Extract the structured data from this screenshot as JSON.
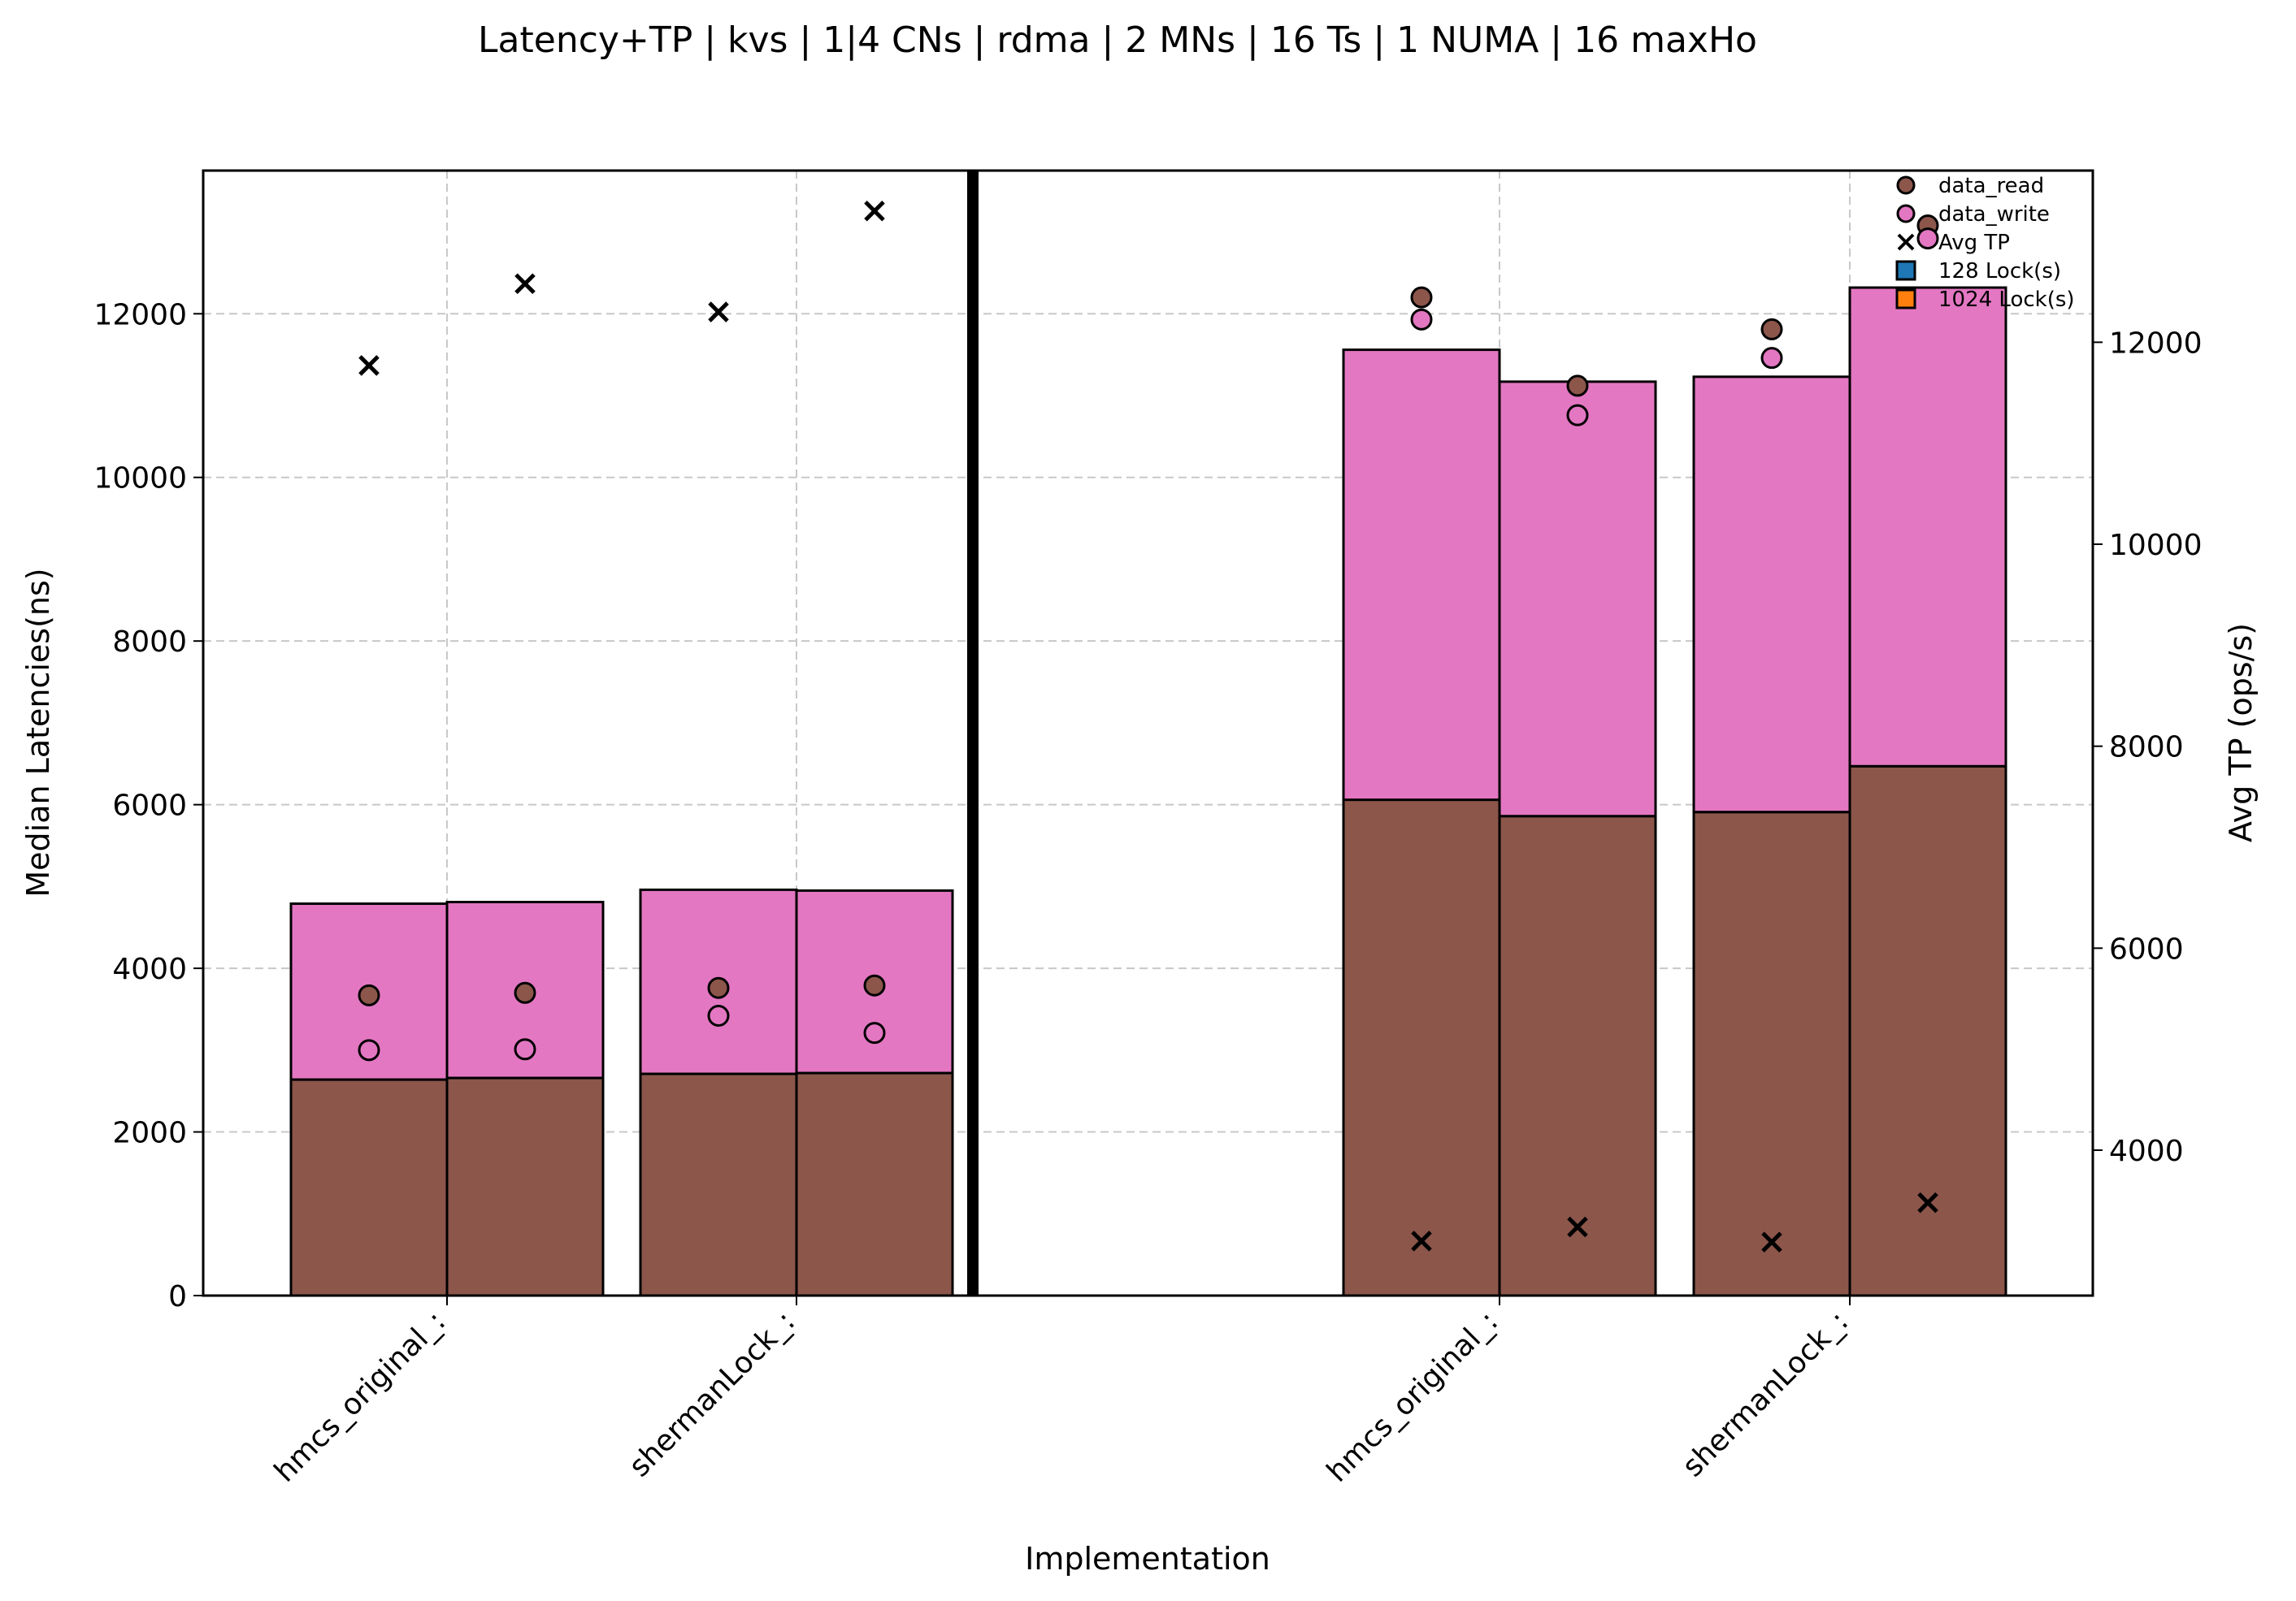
{
  "chart_data": {
    "type": "bar",
    "title": "Latency+TP | kvs | 1|4 CNs | rdma | 2 MNs | 16 Ts | 1 NUMA | 16 maxHo",
    "xlabel": "Implementation",
    "ylabel": "Median Latencies(ns)",
    "y2label": "Avg TP (ops/s)",
    "ylim": [
      0,
      13750
    ],
    "y2lim": [
      2560,
      13700
    ],
    "yticks": [
      0,
      2000,
      4000,
      6000,
      8000,
      10000,
      12000
    ],
    "y2ticks": [
      4000,
      6000,
      8000,
      10000,
      12000
    ],
    "grid": true,
    "legend_position": "top-right",
    "colors": {
      "data_read": "#8c564b",
      "data_write": "#e377c2",
      "lock128": "#1f77b4",
      "lock1024": "#ff7f0e",
      "separator": "#000000"
    },
    "groups": [
      {
        "label": "hmcs_original_:",
        "bars": [
          {
            "lock": "128",
            "read": 2640,
            "write_top": 4790,
            "pt_read": 3670,
            "pt_write": 3000,
            "avg_tp": 11770
          },
          {
            "lock": "1024",
            "read": 2660,
            "write_top": 4810,
            "pt_read": 3700,
            "pt_write": 3010,
            "avg_tp": 12580
          }
        ]
      },
      {
        "label": "shermanLock_:",
        "bars": [
          {
            "lock": "128",
            "read": 2710,
            "write_top": 4960,
            "pt_read": 3760,
            "pt_write": 3420,
            "avg_tp": 12300
          },
          {
            "lock": "1024",
            "read": 2720,
            "write_top": 4950,
            "pt_read": 3790,
            "pt_write": 3210,
            "avg_tp": 13300
          }
        ]
      },
      {
        "label": "hmcs_original_:",
        "bars": [
          {
            "lock": "128",
            "read": 6060,
            "write_top": 11560,
            "pt_read": 12200,
            "pt_write": 11930,
            "avg_tp": 3100
          },
          {
            "lock": "1024",
            "read": 5860,
            "write_top": 11170,
            "pt_read": 11120,
            "pt_write": 10760,
            "avg_tp": 3240
          }
        ]
      },
      {
        "label": "shermanLock_:",
        "bars": [
          {
            "lock": "128",
            "read": 5910,
            "write_top": 11230,
            "pt_read": 11810,
            "pt_write": 11460,
            "avg_tp": 3090
          },
          {
            "lock": "1024",
            "read": 6470,
            "write_top": 12320,
            "pt_read": 13080,
            "pt_write": 12920,
            "avg_tp": 3480
          }
        ]
      }
    ],
    "legend": [
      {
        "label": "data_read",
        "marker": "circle",
        "color": "#8c564b"
      },
      {
        "label": "data_write",
        "marker": "circle",
        "color": "#e377c2"
      },
      {
        "label": "Avg TP",
        "marker": "x",
        "color": "#000000"
      },
      {
        "label": "128 Lock(s)",
        "marker": "square",
        "color": "#1f77b4"
      },
      {
        "label": "1024 Lock(s)",
        "marker": "square",
        "color": "#ff7f0e"
      }
    ]
  }
}
